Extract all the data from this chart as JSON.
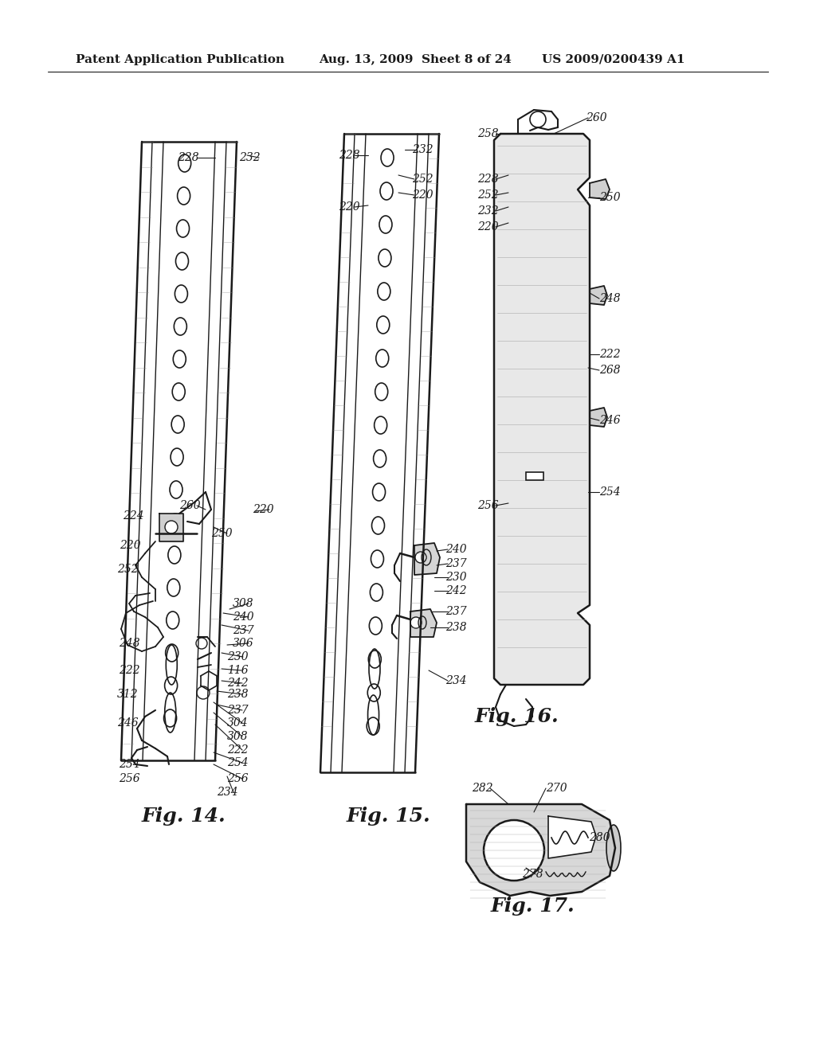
{
  "header_left": "Patent Application Publication",
  "header_mid": "Aug. 13, 2009  Sheet 8 of 24",
  "header_right": "US 2009/0200439 A1",
  "fig14_label": "Fig. 14.",
  "fig15_label": "Fig. 15.",
  "fig16_label": "Fig. 16.",
  "fig17_label": "Fig. 17.",
  "bg_color": "#ffffff",
  "line_color": "#1a1a1a",
  "text_color": "#1a1a1a",
  "header_fontsize": 11,
  "fig_label_fontsize": 18,
  "ref_fontsize": 10
}
